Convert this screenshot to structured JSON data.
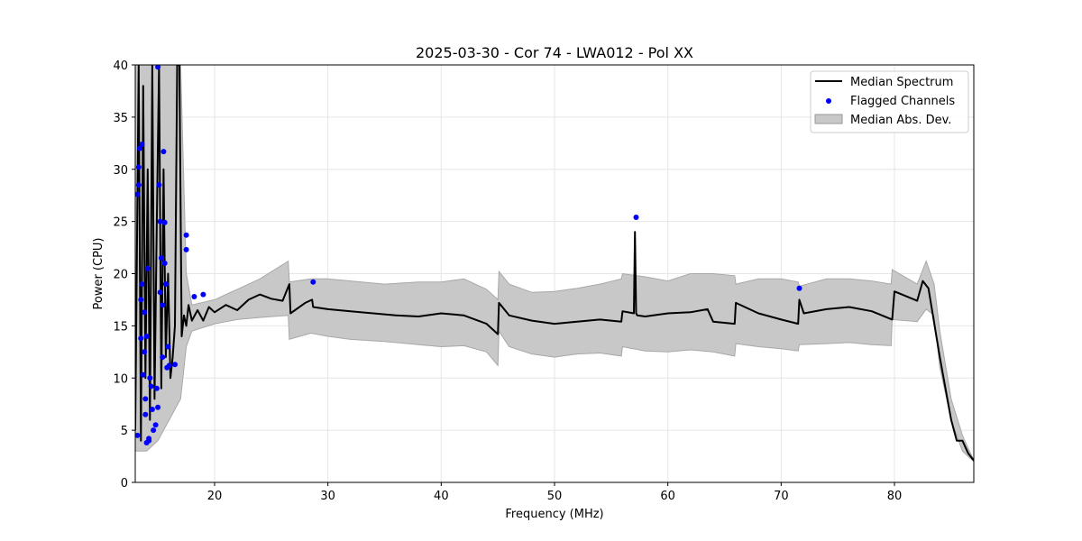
{
  "chart_data": {
    "type": "line",
    "title": "2025-03-30 - Cor 74 - LWA012 - Pol XX",
    "xlabel": "Frequency (MHz)",
    "ylabel": "Power (CPU)",
    "xlim": [
      13,
      87
    ],
    "ylim": [
      0,
      40
    ],
    "xticks": [
      20,
      30,
      40,
      50,
      60,
      70,
      80
    ],
    "yticks": [
      0,
      5,
      10,
      15,
      20,
      25,
      30,
      35,
      40
    ],
    "grid": true,
    "legend_position": "top-right",
    "legend": [
      {
        "label": "Median Spectrum",
        "kind": "line",
        "color": "#000000"
      },
      {
        "label": "Flagged Channels",
        "kind": "marker",
        "color": "#0000ff"
      },
      {
        "label": "Median Abs. Dev.",
        "kind": "patch",
        "color": "#c8c8c8"
      }
    ],
    "median_spectrum": {
      "x": [
        13.0,
        13.3,
        13.5,
        13.7,
        13.9,
        14.1,
        14.3,
        14.5,
        14.7,
        14.9,
        15.1,
        15.3,
        15.5,
        15.7,
        15.9,
        16.1,
        16.3,
        16.5,
        16.7,
        16.9,
        17.1,
        17.3,
        17.5,
        17.7,
        18.0,
        18.5,
        19.0,
        19.5,
        20.0,
        21.0,
        22.0,
        23.0,
        24.0,
        25.0,
        26.0,
        26.6,
        26.7,
        28.0,
        28.6,
        28.7,
        30.0,
        32.0,
        34.0,
        36.0,
        38.0,
        40.0,
        42.0,
        44.0,
        45.0,
        45.1,
        46.0,
        48.0,
        50.0,
        52.0,
        54.0,
        55.9,
        56.0,
        57.0,
        57.1,
        57.2,
        57.3,
        58.0,
        60.0,
        62.0,
        63.5,
        64.0,
        65.9,
        66.0,
        68.0,
        70.0,
        71.5,
        71.6,
        72.0,
        74.0,
        76.0,
        78.0,
        79.8,
        80.0,
        82.0,
        82.5,
        83.0,
        84.0,
        85.0,
        85.5,
        86.0,
        86.5,
        87.0
      ],
      "y": [
        5,
        40,
        4,
        38,
        10,
        30,
        6,
        40,
        8,
        25,
        40,
        9,
        30,
        12,
        20,
        10,
        12,
        15,
        40,
        40,
        14,
        16,
        15,
        17,
        15.5,
        16.5,
        15.5,
        16.8,
        16.3,
        17,
        16.5,
        17.5,
        18,
        17.6,
        17.4,
        19,
        16.2,
        17.2,
        17.5,
        16.8,
        16.6,
        16.4,
        16.2,
        16.0,
        15.9,
        16.2,
        16.0,
        15.2,
        14.2,
        17.2,
        16.0,
        15.5,
        15.2,
        15.4,
        15.6,
        15.4,
        16.4,
        16.2,
        24,
        16.2,
        16.0,
        15.9,
        16.2,
        16.3,
        16.6,
        15.4,
        15.2,
        17.2,
        16.2,
        15.6,
        15.2,
        17.5,
        16.2,
        16.6,
        16.8,
        16.4,
        15.6,
        18.3,
        17.4,
        19.3,
        18.6,
        12,
        6,
        4,
        4,
        2.8,
        2.1
      ]
    },
    "mad_band": {
      "x": [
        13.0,
        14.0,
        15.0,
        16.0,
        17.0,
        17.5,
        18.0,
        20.0,
        22.0,
        24.0,
        26.5,
        26.6,
        28.5,
        30.0,
        32.0,
        35.0,
        38.0,
        40.0,
        42.0,
        44.0,
        45.0,
        45.1,
        46.0,
        48.0,
        50.0,
        52.0,
        54.0,
        55.9,
        56.0,
        58.0,
        60.0,
        62.0,
        64.0,
        65.9,
        66.0,
        68.0,
        70.0,
        71.5,
        71.6,
        74.0,
        76.0,
        78.0,
        79.7,
        79.8,
        82.0,
        82.8,
        83.5,
        84.0,
        85.0,
        86.0,
        87.0
      ],
      "upper": [
        40,
        40,
        40,
        40,
        40,
        20,
        17,
        17.5,
        18.5,
        19.5,
        21.2,
        19.2,
        19.5,
        19.5,
        19.3,
        19.0,
        19.2,
        19.2,
        19.5,
        18.5,
        17.5,
        20.2,
        19.0,
        18.2,
        18.3,
        18.6,
        19.0,
        19.5,
        20.0,
        19.7,
        19.3,
        20.0,
        20.0,
        19.8,
        19.0,
        19.5,
        19.5,
        19.2,
        18.8,
        19.5,
        19.5,
        19.3,
        19.0,
        20.4,
        19.0,
        21.2,
        19.0,
        14.5,
        8,
        4.5,
        2.1
      ],
      "lower": [
        3,
        3,
        4,
        6,
        8,
        13,
        14.5,
        15.2,
        15.6,
        15.8,
        16.0,
        13.7,
        14.3,
        14.0,
        13.7,
        13.5,
        13.2,
        13.0,
        13.1,
        12.5,
        11.2,
        14.5,
        13.0,
        12.3,
        12.0,
        12.3,
        12.4,
        12.1,
        13.0,
        12.6,
        12.5,
        12.7,
        12.5,
        12.1,
        13.3,
        13.0,
        12.8,
        12.6,
        13.2,
        13.3,
        13.4,
        13.2,
        13.1,
        15.6,
        15.4,
        16.6,
        16.0,
        11.0,
        6.0,
        3.0,
        2.0
      ]
    },
    "flagged_channels": {
      "x": [
        13.2,
        13.3,
        13.4,
        13.5,
        13.6,
        13.7,
        13.8,
        13.9,
        14.0,
        14.1,
        14.2,
        14.3,
        14.4,
        14.6,
        14.8,
        15.0,
        15.1,
        15.2,
        15.3,
        15.4,
        15.5,
        15.6,
        15.7,
        15.8,
        15.9,
        16.0,
        16.5,
        17.5,
        17.5,
        18.2,
        19.0,
        28.7,
        57.2,
        71.6,
        13.3,
        13.6,
        14.0,
        13.8,
        15.0,
        15.2,
        15.4,
        14.5,
        14.9,
        13.5,
        15.6,
        13.2,
        13.9,
        14.2
      ],
      "y": [
        4.5,
        28.5,
        32,
        17.5,
        19,
        10.3,
        12.5,
        8,
        14,
        20.5,
        4,
        10,
        9.2,
        5,
        5.5,
        39.8,
        28.5,
        25,
        21.5,
        12,
        31.7,
        21,
        19,
        11,
        13,
        11.2,
        11.3,
        23.7,
        22.3,
        17.8,
        18,
        19.2,
        25.4,
        18.6,
        30.2,
        32.4,
        3.8,
        16.3,
        7.2,
        18.2,
        17,
        7,
        9,
        13.8,
        24.9,
        27.6,
        6.5,
        4.2
      ]
    }
  }
}
